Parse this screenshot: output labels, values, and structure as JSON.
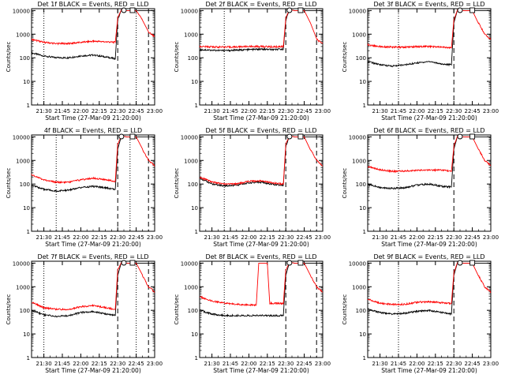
{
  "figure": {
    "ylabel": "Counts/sec",
    "xlabel": "Start Time (27-Mar-09 21:20:00)",
    "colors": {
      "events": "#000000",
      "lld": "#ff0000",
      "axis": "#000000",
      "background": "#ffffff"
    },
    "time_ticks": [
      "21:30",
      "21:45",
      "22:00",
      "22:15",
      "22:30",
      "22:45",
      "23:00"
    ],
    "y_ticks": [
      "1",
      "10",
      "100",
      "1000",
      "10000"
    ]
  },
  "chart_data": [
    {
      "type": "line",
      "title": "Det 1f BLACK = Events, RED = LLD",
      "ylabel": "Counts/sec",
      "xlabel": "Start Time (27-Mar-09 21:20:00)",
      "y_scale": "log",
      "ylim": [
        1,
        12000
      ],
      "xlim_minutes": [
        21.25,
        23.0
      ],
      "x_ticks": [
        "21:30",
        "21:45",
        "22:00",
        "22:15",
        "22:30",
        "22:45",
        "23:00"
      ],
      "dotted_lines": [
        "21:30",
        "22:45"
      ],
      "dashed_lines": [
        "22:30",
        "22:55"
      ],
      "markers": [
        "22:35",
        "22:42"
      ],
      "series": [
        {
          "name": "Events",
          "color": "#000000",
          "x": [
            "21:20",
            "21:30",
            "21:40",
            "21:50",
            "22:00",
            "22:10",
            "22:20",
            "22:28",
            "22:30",
            "22:33",
            "22:37",
            "22:45",
            "22:55",
            "23:00"
          ],
          "y": [
            160,
            120,
            100,
            100,
            120,
            130,
            110,
            90,
            4000,
            11000,
            10000,
            10000,
            10000,
            10000
          ]
        },
        {
          "name": "LLD",
          "color": "#ff0000",
          "x": [
            "21:20",
            "21:30",
            "21:40",
            "21:50",
            "22:00",
            "22:10",
            "22:20",
            "22:28",
            "22:30",
            "22:33",
            "22:37",
            "22:45",
            "22:50",
            "22:55",
            "23:00"
          ],
          "y": [
            600,
            450,
            400,
            400,
            450,
            500,
            480,
            450,
            5000,
            11000,
            10000,
            10000,
            4000,
            1200,
            800
          ]
        }
      ]
    },
    {
      "type": "line",
      "title": "Det 2f BLACK = Events, RED = LLD",
      "ylabel": "Counts/sec",
      "xlabel": "Start Time (27-Mar-09 21:20:00)",
      "y_scale": "log",
      "ylim": [
        1,
        12000
      ],
      "xlim_minutes": [
        21.25,
        23.0
      ],
      "x_ticks": [
        "21:30",
        "21:45",
        "22:00",
        "22:15",
        "22:30",
        "22:45",
        "23:00"
      ],
      "dotted_lines": [
        "21:40"
      ],
      "dashed_lines": [
        "22:30",
        "22:55"
      ],
      "markers": [
        "22:33",
        "22:42"
      ],
      "series": [
        {
          "name": "Events",
          "color": "#000000",
          "x": [
            "21:20",
            "21:30",
            "21:40",
            "21:50",
            "22:00",
            "22:10",
            "22:20",
            "22:28",
            "22:30",
            "22:33",
            "22:37",
            "22:45",
            "22:55",
            "23:00"
          ],
          "y": [
            220,
            210,
            200,
            210,
            220,
            230,
            220,
            230,
            4000,
            11000,
            10000,
            10000,
            10000,
            10000
          ]
        },
        {
          "name": "LLD",
          "color": "#ff0000",
          "x": [
            "21:20",
            "21:30",
            "21:40",
            "21:50",
            "22:00",
            "22:10",
            "22:20",
            "22:28",
            "22:30",
            "22:33",
            "22:37",
            "22:45",
            "22:50",
            "22:55",
            "23:00"
          ],
          "y": [
            300,
            290,
            280,
            290,
            300,
            300,
            290,
            300,
            5000,
            11000,
            10000,
            10000,
            3000,
            600,
            400
          ]
        }
      ]
    },
    {
      "type": "line",
      "title": "Det 3f BLACK = Events, RED = LLD",
      "ylabel": "Counts/sec",
      "xlabel": "Start Time (27-Mar-09 21:20:00)",
      "y_scale": "log",
      "ylim": [
        1,
        12000
      ],
      "xlim_minutes": [
        21.25,
        23.0
      ],
      "x_ticks": [
        "21:30",
        "21:45",
        "22:00",
        "22:15",
        "22:30",
        "22:45",
        "23:00"
      ],
      "dotted_lines": [
        "21:45"
      ],
      "dashed_lines": [
        "22:30",
        "23:00"
      ],
      "markers": [
        "22:35",
        "22:45"
      ],
      "series": [
        {
          "name": "Events",
          "color": "#000000",
          "x": [
            "21:20",
            "21:30",
            "21:40",
            "21:50",
            "22:00",
            "22:10",
            "22:20",
            "22:28",
            "22:30",
            "22:33",
            "22:37",
            "22:45",
            "22:55",
            "23:00"
          ],
          "y": [
            70,
            50,
            45,
            50,
            60,
            70,
            55,
            50,
            3000,
            11000,
            10000,
            10000,
            10000,
            10000
          ]
        },
        {
          "name": "LLD",
          "color": "#ff0000",
          "x": [
            "21:20",
            "21:30",
            "21:40",
            "21:50",
            "22:00",
            "22:10",
            "22:20",
            "22:28",
            "22:30",
            "22:33",
            "22:37",
            "22:45",
            "22:50",
            "22:55",
            "23:00"
          ],
          "y": [
            350,
            300,
            280,
            280,
            300,
            300,
            280,
            260,
            4000,
            11000,
            10000,
            10000,
            3000,
            1000,
            600
          ]
        }
      ]
    },
    {
      "type": "line",
      "title": "4f BLACK = Events, RED = LLD",
      "ylabel": "Counts/sec",
      "xlabel": "Start Time (27-Mar-09 21:20:00)",
      "y_scale": "log",
      "ylim": [
        1,
        12000
      ],
      "xlim_minutes": [
        21.25,
        23.0
      ],
      "x_ticks": [
        "21:30",
        "21:45",
        "22:00",
        "22:15",
        "22:30",
        "22:45",
        "23:00"
      ],
      "dotted_lines": [
        "21:40",
        "22:40"
      ],
      "dashed_lines": [
        "22:30",
        "22:55"
      ],
      "markers": [
        "22:33",
        "22:42"
      ],
      "series": [
        {
          "name": "Events",
          "color": "#000000",
          "x": [
            "21:20",
            "21:30",
            "21:40",
            "21:50",
            "22:00",
            "22:10",
            "22:20",
            "22:28",
            "22:30",
            "22:33",
            "22:37",
            "22:45",
            "22:55",
            "23:00"
          ],
          "y": [
            90,
            60,
            50,
            55,
            70,
            80,
            70,
            60,
            3000,
            11000,
            10000,
            10000,
            10000,
            10000
          ]
        },
        {
          "name": "LLD",
          "color": "#ff0000",
          "x": [
            "21:20",
            "21:30",
            "21:40",
            "21:50",
            "22:00",
            "22:10",
            "22:20",
            "22:28",
            "22:30",
            "22:33",
            "22:37",
            "22:45",
            "22:50",
            "22:55",
            "23:00"
          ],
          "y": [
            250,
            150,
            120,
            120,
            150,
            180,
            150,
            130,
            5000,
            11000,
            10000,
            10000,
            3000,
            1000,
            600
          ]
        }
      ]
    },
    {
      "type": "line",
      "title": "Det 5f BLACK = Events, RED = LLD",
      "ylabel": "Counts/sec",
      "xlabel": "Start Time (27-Mar-09 21:20:00)",
      "y_scale": "log",
      "ylim": [
        1,
        12000
      ],
      "xlim_minutes": [
        21.25,
        23.0
      ],
      "x_ticks": [
        "21:30",
        "21:45",
        "22:00",
        "22:15",
        "22:30",
        "22:45",
        "23:00"
      ],
      "dotted_lines": [
        "21:40"
      ],
      "dashed_lines": [
        "22:30",
        "22:55"
      ],
      "markers": [
        "22:33",
        "22:42"
      ],
      "series": [
        {
          "name": "Events",
          "color": "#000000",
          "x": [
            "21:20",
            "21:30",
            "21:40",
            "21:50",
            "22:00",
            "22:10",
            "22:20",
            "22:28",
            "22:30",
            "22:33",
            "22:37",
            "22:45",
            "22:55",
            "23:00"
          ],
          "y": [
            180,
            100,
            85,
            90,
            110,
            120,
            95,
            90,
            4000,
            11000,
            10000,
            10000,
            10000,
            10000
          ]
        },
        {
          "name": "LLD",
          "color": "#ff0000",
          "x": [
            "21:20",
            "21:30",
            "21:40",
            "21:50",
            "22:00",
            "22:10",
            "22:20",
            "22:28",
            "22:30",
            "22:33",
            "22:37",
            "22:45",
            "22:50",
            "22:55",
            "23:00"
          ],
          "y": [
            200,
            120,
            100,
            100,
            130,
            140,
            110,
            100,
            5000,
            11000,
            10000,
            10000,
            3000,
            1000,
            600
          ]
        }
      ]
    },
    {
      "type": "line",
      "title": "Det 6f BLACK = Events, RED = LLD",
      "ylabel": "Counts/sec",
      "xlabel": "Start Time (27-Mar-09 21:20:00)",
      "y_scale": "log",
      "ylim": [
        1,
        12000
      ],
      "xlim_minutes": [
        21.25,
        23.0
      ],
      "x_ticks": [
        "21:30",
        "21:45",
        "22:00",
        "22:15",
        "22:30",
        "22:45",
        "23:00"
      ],
      "dotted_lines": [
        "21:45"
      ],
      "dashed_lines": [
        "22:30",
        "23:00"
      ],
      "markers": [
        "22:35",
        "22:45"
      ],
      "series": [
        {
          "name": "Events",
          "color": "#000000",
          "x": [
            "21:20",
            "21:30",
            "21:40",
            "21:50",
            "22:00",
            "22:10",
            "22:20",
            "22:28",
            "22:30",
            "22:33",
            "22:37",
            "22:45",
            "22:55",
            "23:00"
          ],
          "y": [
            100,
            70,
            65,
            70,
            90,
            100,
            80,
            75,
            3000,
            11000,
            10000,
            10000,
            10000,
            10000
          ]
        },
        {
          "name": "LLD",
          "color": "#ff0000",
          "x": [
            "21:20",
            "21:30",
            "21:40",
            "21:50",
            "22:00",
            "22:10",
            "22:20",
            "22:28",
            "22:30",
            "22:33",
            "22:37",
            "22:45",
            "22:50",
            "22:55",
            "23:00"
          ],
          "y": [
            550,
            400,
            350,
            350,
            380,
            400,
            380,
            350,
            4000,
            11000,
            10000,
            10000,
            3000,
            1000,
            600
          ]
        }
      ]
    },
    {
      "type": "line",
      "title": "Det 7f BLACK = Events, RED = LLD",
      "ylabel": "Counts/sec",
      "xlabel": "Start Time (27-Mar-09 21:20:00)",
      "y_scale": "log",
      "ylim": [
        1,
        12000
      ],
      "xlim_minutes": [
        21.25,
        23.0
      ],
      "x_ticks": [
        "21:30",
        "21:45",
        "22:00",
        "22:15",
        "22:30",
        "22:45",
        "23:00"
      ],
      "dotted_lines": [
        "21:30",
        "22:45"
      ],
      "dashed_lines": [
        "22:30",
        "22:55"
      ],
      "markers": [
        "22:35",
        "22:42"
      ],
      "series": [
        {
          "name": "Events",
          "color": "#000000",
          "x": [
            "21:20",
            "21:30",
            "21:40",
            "21:50",
            "22:00",
            "22:10",
            "22:20",
            "22:28",
            "22:30",
            "22:33",
            "22:37",
            "22:45",
            "22:55",
            "23:00"
          ],
          "y": [
            100,
            65,
            55,
            60,
            80,
            90,
            70,
            60,
            3000,
            11000,
            10000,
            10000,
            10000,
            10000
          ]
        },
        {
          "name": "LLD",
          "color": "#ff0000",
          "x": [
            "21:20",
            "21:30",
            "21:40",
            "21:50",
            "22:00",
            "22:10",
            "22:20",
            "22:28",
            "22:30",
            "22:33",
            "22:37",
            "22:45",
            "22:50",
            "22:55",
            "23:00"
          ],
          "y": [
            220,
            130,
            110,
            110,
            140,
            160,
            130,
            110,
            5000,
            11000,
            10000,
            10000,
            3000,
            1000,
            600
          ]
        }
      ]
    },
    {
      "type": "line",
      "title": "Det 8f BLACK = Events, RED = LLD",
      "ylabel": "Counts/sec",
      "xlabel": "Start Time (27-Mar-09 21:20:00)",
      "y_scale": "log",
      "ylim": [
        1,
        12000
      ],
      "xlim_minutes": [
        21.25,
        23.0
      ],
      "x_ticks": [
        "21:30",
        "21:45",
        "22:00",
        "22:15",
        "22:30",
        "22:45",
        "23:00"
      ],
      "dotted_lines": [
        "21:40"
      ],
      "dashed_lines": [
        "22:30",
        "22:55"
      ],
      "markers": [
        "22:33",
        "22:42"
      ],
      "series": [
        {
          "name": "Events",
          "color": "#000000",
          "x": [
            "21:20",
            "21:30",
            "21:40",
            "21:50",
            "22:00",
            "22:10",
            "22:20",
            "22:28",
            "22:30",
            "22:33",
            "22:37",
            "22:45",
            "22:55",
            "23:00"
          ],
          "y": [
            100,
            70,
            60,
            60,
            60,
            60,
            60,
            60,
            3000,
            11000,
            10000,
            10000,
            10000,
            10000
          ]
        },
        {
          "name": "LLD",
          "color": "#ff0000",
          "x": [
            "21:20",
            "21:30",
            "21:40",
            "21:50",
            "22:00",
            "22:06",
            "22:08",
            "22:15",
            "22:17",
            "22:25",
            "22:28",
            "22:30",
            "22:33",
            "22:37",
            "22:45",
            "22:50",
            "22:55",
            "23:00"
          ],
          "y": [
            380,
            250,
            200,
            180,
            170,
            170,
            10000,
            10000,
            200,
            200,
            190,
            5000,
            11000,
            10000,
            10000,
            3000,
            1000,
            600
          ]
        }
      ]
    },
    {
      "type": "line",
      "title": "Det 9f BLACK = Events, RED = LLD",
      "ylabel": "Counts/sec",
      "xlabel": "Start Time (27-Mar-09 21:20:00)",
      "y_scale": "log",
      "ylim": [
        1,
        12000
      ],
      "xlim_minutes": [
        21.25,
        23.0
      ],
      "x_ticks": [
        "21:30",
        "21:45",
        "22:00",
        "22:15",
        "22:30",
        "22:45",
        "23:00"
      ],
      "dotted_lines": [
        "21:45"
      ],
      "dashed_lines": [
        "22:30",
        "23:00"
      ],
      "markers": [
        "22:35",
        "22:45"
      ],
      "series": [
        {
          "name": "Events",
          "color": "#000000",
          "x": [
            "21:20",
            "21:30",
            "21:40",
            "21:50",
            "22:00",
            "22:10",
            "22:20",
            "22:28",
            "22:30",
            "22:33",
            "22:37",
            "22:45",
            "22:55",
            "23:00"
          ],
          "y": [
            110,
            80,
            70,
            75,
            90,
            100,
            80,
            70,
            3000,
            11000,
            10000,
            10000,
            10000,
            10000
          ]
        },
        {
          "name": "LLD",
          "color": "#ff0000",
          "x": [
            "21:20",
            "21:30",
            "21:40",
            "21:50",
            "22:00",
            "22:10",
            "22:20",
            "22:28",
            "22:30",
            "22:33",
            "22:37",
            "22:45",
            "22:50",
            "22:55",
            "23:00"
          ],
          "y": [
            300,
            200,
            180,
            180,
            220,
            230,
            210,
            200,
            4000,
            11000,
            10000,
            10000,
            3000,
            1000,
            600
          ]
        }
      ]
    }
  ]
}
